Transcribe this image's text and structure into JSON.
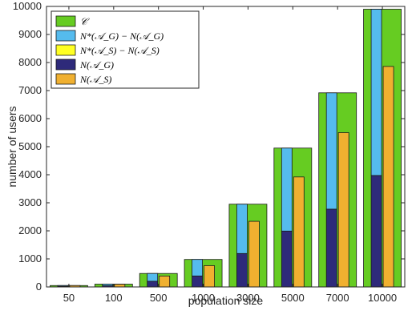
{
  "chart_data": {
    "type": "bar",
    "xlabel": "population size",
    "ylabel": "number of users",
    "ylim": [
      0,
      10000
    ],
    "yticks": [
      0,
      1000,
      2000,
      3000,
      4000,
      5000,
      6000,
      7000,
      8000,
      9000,
      10000
    ],
    "categories": [
      "50",
      "100",
      "500",
      "1000",
      "3000",
      "5000",
      "7000",
      "10000"
    ],
    "grid": false,
    "legend_position": "top-left",
    "legend": [
      {
        "label": "𝒞",
        "color": "#66CC22"
      },
      {
        "label": "N*(𝒜_G) − N(𝒜_G)",
        "color": "#55BBEE"
      },
      {
        "label": "N*(𝒜_S) − N(𝒜_S)",
        "color": "#FFFF22"
      },
      {
        "label": "N(𝒜_G)",
        "color": "#2E2A7A"
      },
      {
        "label": "N(𝒜_S)",
        "color": "#F0B030"
      }
    ],
    "series": [
      {
        "name": "𝒞",
        "values": [
          50,
          100,
          480,
          980,
          2950,
          4950,
          6920,
          9900
        ]
      },
      {
        "name": "N*(𝒜_G)",
        "values": [
          50,
          100,
          480,
          980,
          2950,
          4950,
          6920,
          9900
        ]
      },
      {
        "name": "N(𝒜_G)",
        "values": [
          20,
          40,
          200,
          390,
          1190,
          1990,
          2770,
          3970
        ]
      },
      {
        "name": "N*(𝒜_S)",
        "values": [
          50,
          95,
          390,
          760,
          2340,
          3920,
          5500,
          7860
        ]
      },
      {
        "name": "N(𝒜_S)",
        "values": [
          50,
          95,
          390,
          760,
          2340,
          3920,
          5500,
          7860
        ]
      }
    ]
  }
}
